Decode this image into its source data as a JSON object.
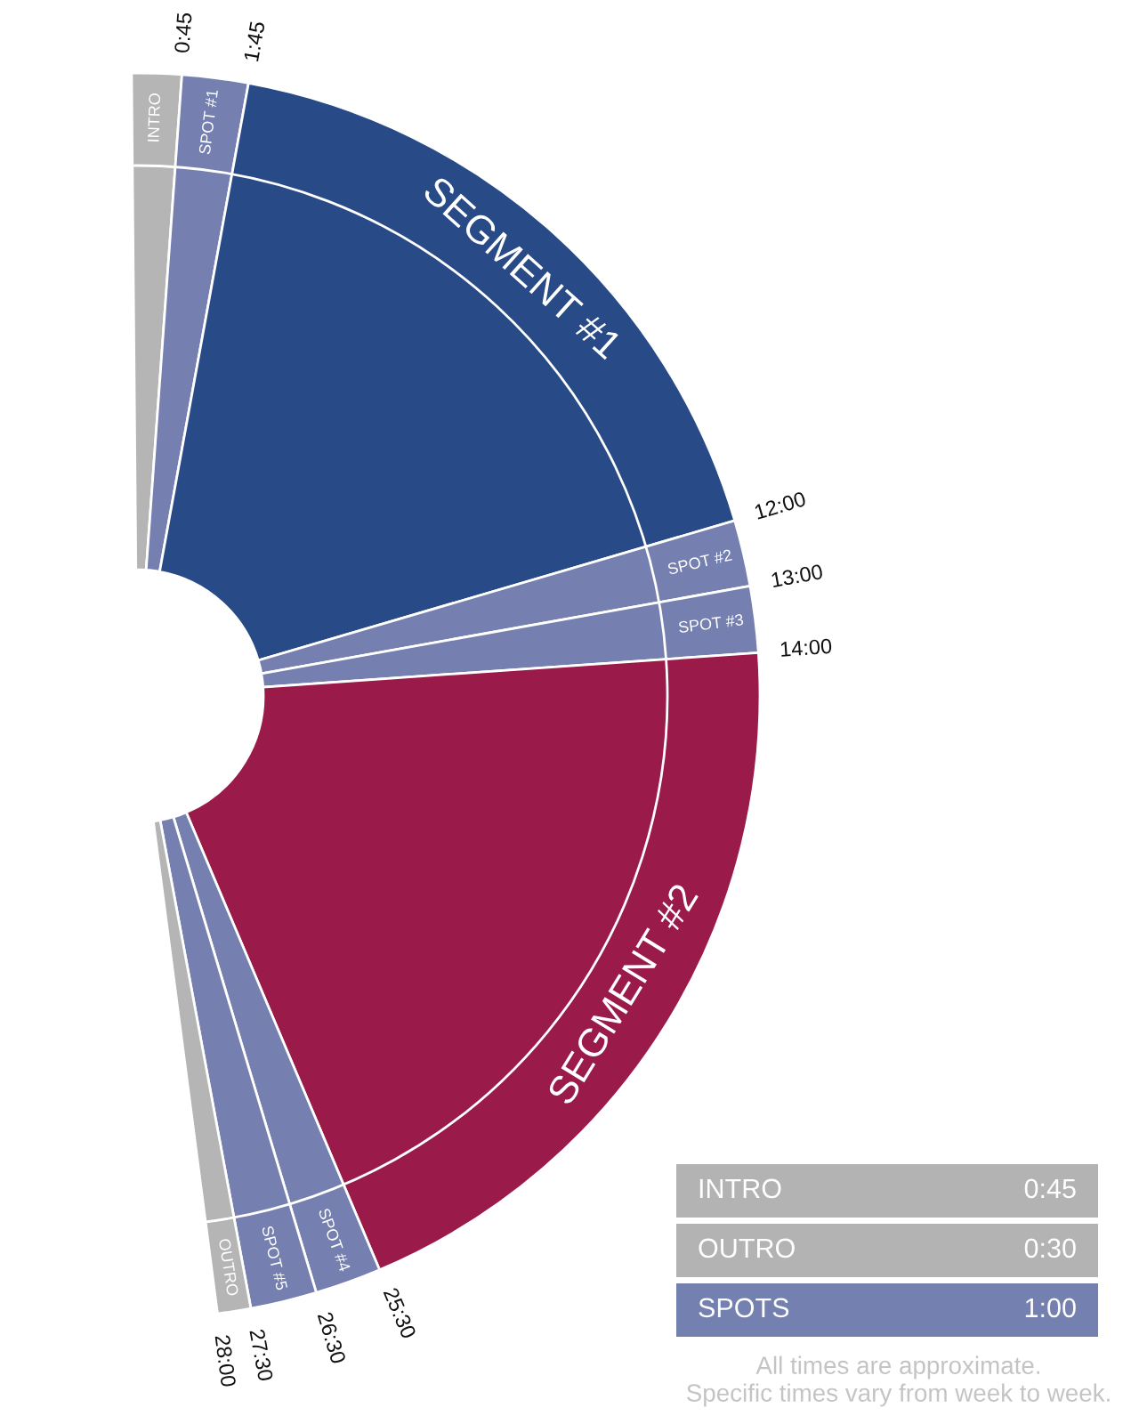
{
  "chart_data": [
    {
      "type": "donut",
      "categories": [
        "INTRO",
        "SPOT #1",
        "SEGMENT #1",
        "SPOT #2",
        "SPOT #3",
        "SEGMENT #2",
        "SPOT #4",
        "SPOT #5",
        "OUTRO"
      ],
      "values": [
        0.75,
        1,
        10.25,
        1,
        1,
        11.5,
        1,
        1,
        0.5
      ],
      "colors": [
        "#b5b5b5",
        "#7580b0",
        "#284a86",
        "#7580b0",
        "#7580b0",
        "#9a1a4a",
        "#7580b0",
        "#7580b0",
        "#b5b5b5"
      ],
      "annotations": [
        "0:45",
        "1:45",
        "12:00",
        "13:00",
        "14:00",
        "25:30",
        "26:30",
        "27:30",
        "28:00"
      ]
    },
    {
      "type": "other",
      "categories": [
        "INTRO",
        "OUTRO",
        "SPOTS"
      ],
      "value_labels": [
        "0:45",
        "0:30",
        "1:00"
      ],
      "colors": [
        "#b3b3b3",
        "#b3b3b3",
        "#7480b0"
      ],
      "annotations": [
        "All times are approximate.\nSpecific times vary from week to week."
      ]
    }
  ]
}
